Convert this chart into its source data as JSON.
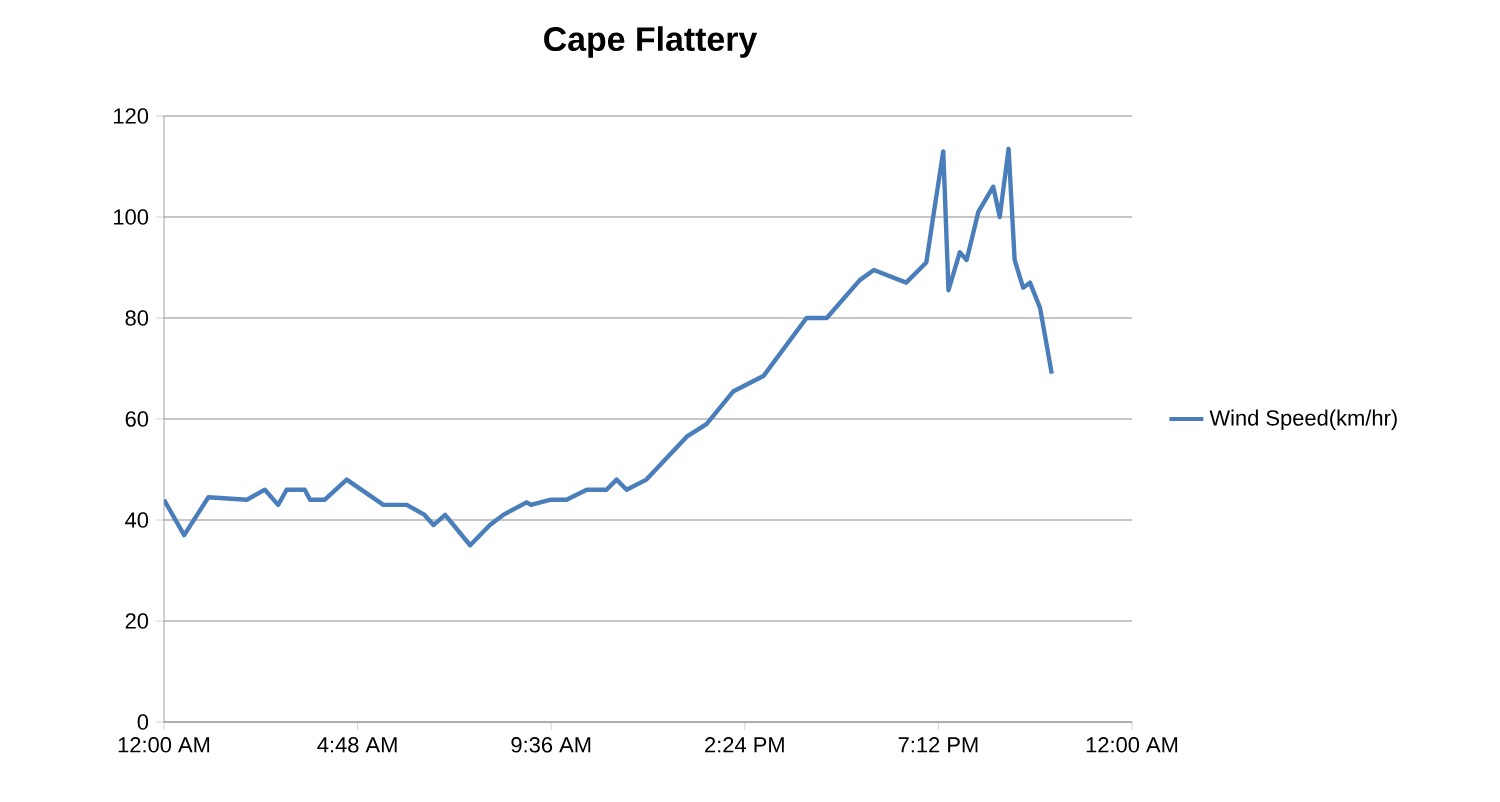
{
  "chart_data": {
    "type": "line",
    "title": "Cape Flattery",
    "legend": "right",
    "grid": "y",
    "marker": "none",
    "line_style": "solid",
    "xlim": [
      0,
      24
    ],
    "ylim": [
      0,
      120
    ],
    "yticks": [
      0,
      20,
      40,
      60,
      80,
      100,
      120
    ],
    "xticks": [
      {
        "value": 0,
        "label": "12:00 AM"
      },
      {
        "value": 4.8,
        "label": "4:48 AM"
      },
      {
        "value": 9.6,
        "label": "9:36 AM"
      },
      {
        "value": 14.4,
        "label": "2:24 PM"
      },
      {
        "value": 19.2,
        "label": "7:12 PM"
      },
      {
        "value": 24,
        "label": "12:00 AM"
      }
    ],
    "series": [
      {
        "name": "Wind Speed(km/hr)",
        "color": "#4a7ebb",
        "x": [
          0,
          0.5,
          1.1,
          2.05,
          2.5,
          2.83,
          3.04,
          3.49,
          3.62,
          3.98,
          4.53,
          5.44,
          6.02,
          6.46,
          6.68,
          6.97,
          7.59,
          8.08,
          8.41,
          8.99,
          9.1,
          9.57,
          9.98,
          10.48,
          10.97,
          11.22,
          11.47,
          11.96,
          12.96,
          13.45,
          14.12,
          14.86,
          15.93,
          16.43,
          17.25,
          17.6,
          18.4,
          18.9,
          19.07,
          19.32,
          19.45,
          19.73,
          19.9,
          20.19,
          20.56,
          20.72,
          20.94,
          21.09,
          21.3,
          21.47,
          21.72,
          22.01
        ],
        "values": [
          44,
          37,
          44.5,
          44,
          46,
          43,
          46,
          46,
          44,
          44,
          48,
          43,
          43,
          41,
          39,
          41,
          35,
          39,
          41,
          43.5,
          43,
          44,
          44,
          46,
          46,
          48,
          46,
          48,
          56.5,
          59,
          65.5,
          68.5,
          80,
          80,
          87.5,
          89.5,
          87,
          91,
          100,
          113,
          85.5,
          93,
          91.5,
          101,
          106,
          100,
          113.5,
          91.5,
          86,
          87,
          82,
          69
        ]
      }
    ]
  }
}
